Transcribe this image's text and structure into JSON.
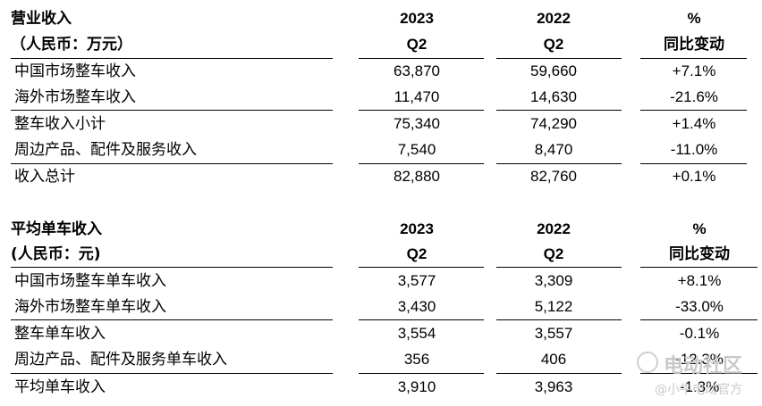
{
  "table1": {
    "title": "营业收入",
    "unit": "（人民币：万元）",
    "col1_year": "2023",
    "col1_q": "Q2",
    "col2_year": "2022",
    "col2_q": "Q2",
    "col3_top": "%",
    "col3_label": "同比变动",
    "rows": [
      {
        "label": "中国市场整车收入",
        "v2023": "63,870",
        "v2022": "59,660",
        "change": "+7.1%"
      },
      {
        "label": "海外市场整车收入",
        "v2023": "11,470",
        "v2022": "14,630",
        "change": "-21.6%"
      },
      {
        "label": "整车收入小计",
        "v2023": "75,340",
        "v2022": "74,290",
        "change": "+1.4%"
      },
      {
        "label": "周边产品、配件及服务收入",
        "v2023": "7,540",
        "v2022": "8,470",
        "change": "-11.0%"
      },
      {
        "label": "收入总计",
        "v2023": "82,880",
        "v2022": "82,760",
        "change": "+0.1%"
      }
    ]
  },
  "table2": {
    "title": "平均单车收入",
    "unit": "(人民币：元)",
    "col1_year": "2023",
    "col1_q": "Q2",
    "col2_year": "2022",
    "col2_q": "Q2",
    "col3_top": "%",
    "col3_label": "同比变动",
    "rows": [
      {
        "label": "中国市场整车单车收入",
        "v2023": "3,577",
        "v2022": "3,309",
        "change": "+8.1%"
      },
      {
        "label": "海外市场整车单车收入",
        "v2023": "3,430",
        "v2022": "5,122",
        "change": "-33.0%"
      },
      {
        "label": "整车单车收入",
        "v2023": "3,554",
        "v2022": "3,557",
        "change": "-0.1%"
      },
      {
        "label": "周边产品、配件及服务单车收入",
        "v2023": "356",
        "v2022": "406",
        "change": "-12.3%"
      },
      {
        "label": "平均单车收入",
        "v2023": "3,910",
        "v2022": "3,963",
        "change": "-1.3%"
      }
    ]
  },
  "watermark": {
    "line1": "电动社区",
    "line2": "@小牛电动官方"
  }
}
